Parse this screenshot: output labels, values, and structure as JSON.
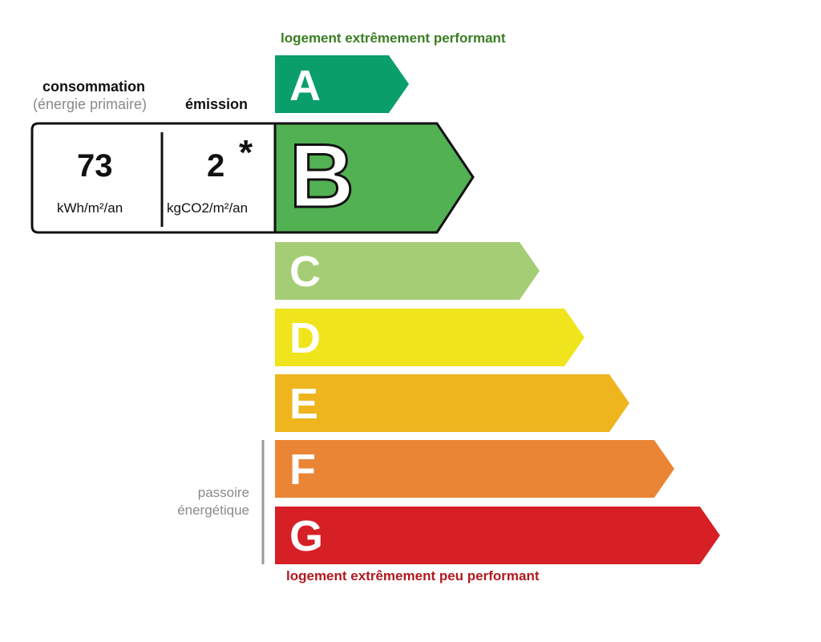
{
  "header": {
    "top_caption": "logement extrêmement performant",
    "bottom_caption": "logement extrêmement peu performant"
  },
  "consumption": {
    "label": "consommation",
    "sublabel": "(énergie primaire)",
    "value": "73",
    "unit": "kWh/m²/an"
  },
  "emission": {
    "label": "émission",
    "value": "2",
    "marker": "*",
    "unit": "kgCO2/m²/an"
  },
  "current_class": "B",
  "classes": [
    {
      "letter": "A",
      "color": "#0a9e6b"
    },
    {
      "letter": "B",
      "color": "#52b153"
    },
    {
      "letter": "C",
      "color": "#a5cd76"
    },
    {
      "letter": "D",
      "color": "#f0e51c"
    },
    {
      "letter": "E",
      "color": "#efb51f"
    },
    {
      "letter": "F",
      "color": "#ea8536"
    },
    {
      "letter": "G",
      "color": "#d71f26"
    }
  ],
  "passoire": {
    "line1": "passoire",
    "line2": "énergétique"
  }
}
